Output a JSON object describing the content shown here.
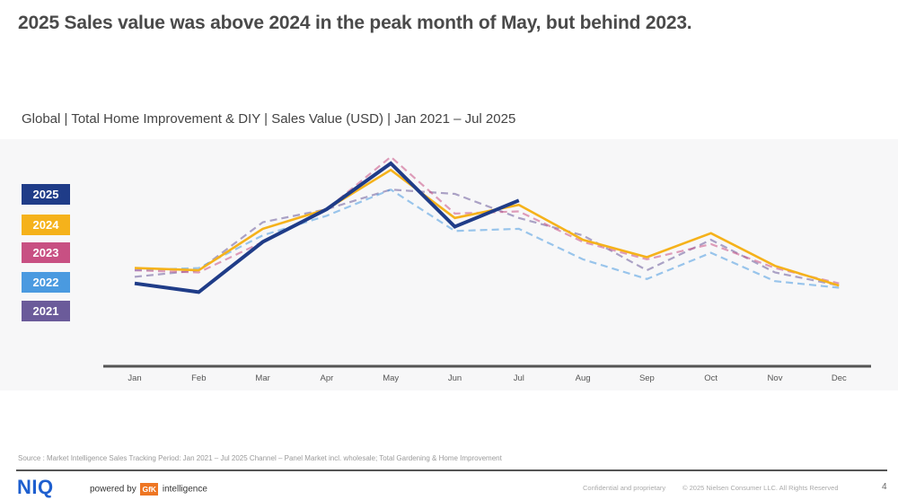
{
  "slide": {
    "headline": "2025 Sales value was above 2024 in the peak month of May, but behind 2023.",
    "subtitle": "Global | Total Home Improvement & DIY | Sales Value (USD) | Jan 2021 – Jul 2025",
    "source": "Source : Market Intelligence Sales Tracking Period: Jan 2021 – Jul 2025 Channel – Panel Market incl. wholesale; Total Gardening & Home Improvement",
    "footer": {
      "logo": "NIQ",
      "powered_by": "powered by",
      "gfk": "GfK",
      "intelligence": "intelligence",
      "confidential": "Confidential and proprietary",
      "copyright": "© 2025 Nielsen Consumer LLC. All Rights Reserved",
      "page_number": "4"
    }
  },
  "chart_data": {
    "type": "line",
    "title": "Global | Total Home Improvement & DIY | Sales Value (USD) | Jan 2021 – Jul 2025",
    "xlabel": "",
    "ylabel": "",
    "note": "No y-axis scale shown; values are a relative index (0 = axis baseline, 100 = top of plot area) estimated from line positions.",
    "categories": [
      "Jan",
      "Feb",
      "Mar",
      "Apr",
      "May",
      "Jun",
      "Jul",
      "Aug",
      "Sep",
      "Oct",
      "Nov",
      "Dec"
    ],
    "ylim": [
      0,
      100
    ],
    "grid": false,
    "legend_position": "left",
    "series": [
      {
        "name": "2025",
        "color": "#1f3c88",
        "style": "solid",
        "values": [
          38,
          34,
          57,
          72,
          93,
          64,
          76,
          null,
          null,
          null,
          null,
          null
        ]
      },
      {
        "name": "2024",
        "color": "#f5b21b",
        "style": "solid",
        "values": [
          45,
          44,
          63,
          72,
          90,
          68,
          74,
          58,
          50,
          61,
          46,
          37
        ]
      },
      {
        "name": "2023",
        "color": "#c85083",
        "style": "dashed",
        "values": [
          44,
          43,
          57,
          72,
          96,
          70,
          71,
          57,
          49,
          56,
          45,
          38
        ]
      },
      {
        "name": "2022",
        "color": "#4a9ae0",
        "style": "dashed",
        "values": [
          44,
          45,
          60,
          69,
          81,
          62,
          63,
          49,
          40,
          52,
          39,
          36
        ]
      },
      {
        "name": "2021",
        "color": "#6b5b9a",
        "style": "dashed",
        "values": [
          41,
          44,
          66,
          72,
          81,
          79,
          68,
          60,
          44,
          58,
          43,
          37
        ]
      }
    ]
  }
}
